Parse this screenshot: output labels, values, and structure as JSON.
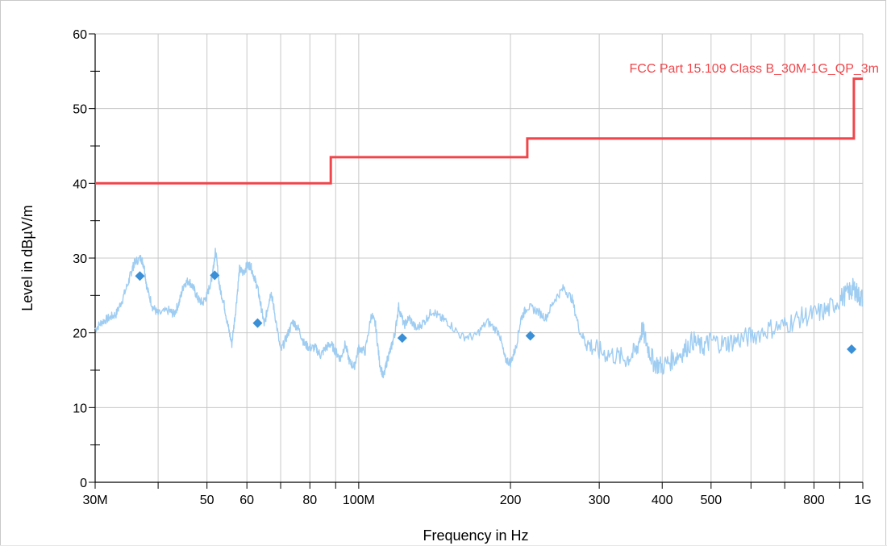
{
  "chart_data": {
    "type": "line",
    "title": "",
    "xlabel": "Frequency in Hz",
    "ylabel": "Level in dBµV/m",
    "x_scale": "log",
    "xlim": [
      30000000,
      1000000000
    ],
    "ylim": [
      0,
      60
    ],
    "grid": true,
    "x_ticks": [
      {
        "value": 30000000,
        "label": "30M"
      },
      {
        "value": 40000000,
        "label": ""
      },
      {
        "value": 50000000,
        "label": "50"
      },
      {
        "value": 60000000,
        "label": "60"
      },
      {
        "value": 70000000,
        "label": ""
      },
      {
        "value": 80000000,
        "label": "80"
      },
      {
        "value": 90000000,
        "label": ""
      },
      {
        "value": 100000000,
        "label": "100M"
      },
      {
        "value": 200000000,
        "label": "200"
      },
      {
        "value": 300000000,
        "label": "300"
      },
      {
        "value": 400000000,
        "label": "400"
      },
      {
        "value": 500000000,
        "label": "500"
      },
      {
        "value": 600000000,
        "label": ""
      },
      {
        "value": 700000000,
        "label": ""
      },
      {
        "value": 800000000,
        "label": "800"
      },
      {
        "value": 900000000,
        "label": ""
      },
      {
        "value": 1000000000,
        "label": "1G"
      }
    ],
    "y_major_ticks": [
      {
        "value": 0,
        "label": "0"
      },
      {
        "value": 10,
        "label": "10"
      },
      {
        "value": 20,
        "label": "20"
      },
      {
        "value": 30,
        "label": "30"
      },
      {
        "value": 40,
        "label": "40"
      },
      {
        "value": 50,
        "label": "50"
      },
      {
        "value": 60,
        "label": "60"
      }
    ],
    "y_minor_ticks": [
      5,
      15,
      25,
      35,
      45,
      55
    ],
    "colors": {
      "limit": "#f0464b",
      "scan": "#9fcdf2",
      "markers": "#3a8fd6",
      "grid": "#c8c8c8",
      "axis": "#000000"
    },
    "series": [
      {
        "name": "FCC Part 15.109 Class B_30M-1G_QP_3m",
        "kind": "limit-step",
        "x": [
          30000000,
          88000000,
          88000000,
          216000000,
          216000000,
          960000000,
          960000000,
          1000000000
        ],
        "y": [
          40,
          40,
          43.5,
          43.5,
          46,
          46,
          54,
          54
        ]
      },
      {
        "kind": "scan",
        "x": [
          30000000,
          31000000,
          32000000,
          33000000,
          34000000,
          35000000,
          35500000,
          36000000,
          37000000,
          37500000,
          38000000,
          39000000,
          40000000,
          42000000,
          43000000,
          44000000,
          45000000,
          46000000,
          47000000,
          48000000,
          49000000,
          50000000,
          51000000,
          51500000,
          52000000,
          53000000,
          54000000,
          55000000,
          56000000,
          57000000,
          58000000,
          59000000,
          60000000,
          61000000,
          62000000,
          63000000,
          64000000,
          65000000,
          66000000,
          67000000,
          68000000,
          70000000,
          72000000,
          74000000,
          76000000,
          78000000,
          80000000,
          82000000,
          84000000,
          86000000,
          88000000,
          90000000,
          92000000,
          94000000,
          96000000,
          98000000,
          100000000,
          103000000,
          106000000,
          108000000,
          110000000,
          112000000,
          114000000,
          116000000,
          118000000,
          120000000,
          123000000,
          126000000,
          130000000,
          135000000,
          140000000,
          145000000,
          150000000,
          160000000,
          170000000,
          180000000,
          190000000,
          195000000,
          200000000,
          205000000,
          210000000,
          216000000,
          225000000,
          235000000,
          245000000,
          255000000,
          265000000,
          275000000,
          285000000,
          300000000,
          320000000,
          340000000,
          355000000,
          365000000,
          375000000,
          385000000,
          400000000,
          420000000,
          440000000,
          460000000,
          480000000,
          500000000,
          530000000,
          560000000,
          600000000,
          650000000,
          700000000,
          750000000,
          800000000,
          850000000,
          900000000,
          940000000,
          960000000,
          980000000,
          1000000000
        ],
        "y": [
          20.5,
          21.5,
          22,
          22.5,
          24.5,
          27,
          28.5,
          29.5,
          30,
          29,
          26,
          23.5,
          22.5,
          23,
          22.5,
          24,
          26.5,
          27,
          26,
          24.5,
          24,
          25,
          27,
          29,
          31,
          26,
          24,
          21,
          18.5,
          23,
          28.5,
          28,
          29,
          29,
          27.5,
          26,
          23.5,
          21,
          23.5,
          25.5,
          23,
          17.5,
          19.5,
          21.5,
          20.5,
          18.5,
          18,
          18,
          17,
          18,
          18.5,
          17.5,
          16.5,
          18.5,
          16,
          15.5,
          18,
          17.5,
          22.5,
          21,
          16,
          14,
          16.5,
          18,
          20,
          23.5,
          21,
          22,
          20.5,
          21.5,
          23,
          22,
          21.5,
          19.5,
          19.5,
          21.5,
          20,
          16.5,
          16,
          18,
          22,
          23.5,
          23,
          22,
          24.5,
          26,
          24.5,
          20,
          18.5,
          17.5,
          17,
          16.5,
          17.5,
          20.5,
          18,
          16,
          15.5,
          16.5,
          17.5,
          19,
          18,
          19,
          18.5,
          19,
          19.5,
          20.5,
          21,
          22,
          22.5,
          23,
          24.5,
          25.5,
          26,
          25,
          24.5
        ]
      },
      {
        "kind": "markers",
        "x": [
          36800000,
          51800000,
          63000000,
          122000000,
          219000000,
          950000000
        ],
        "y": [
          27.6,
          27.7,
          21.3,
          19.3,
          19.6,
          17.8
        ]
      }
    ]
  }
}
